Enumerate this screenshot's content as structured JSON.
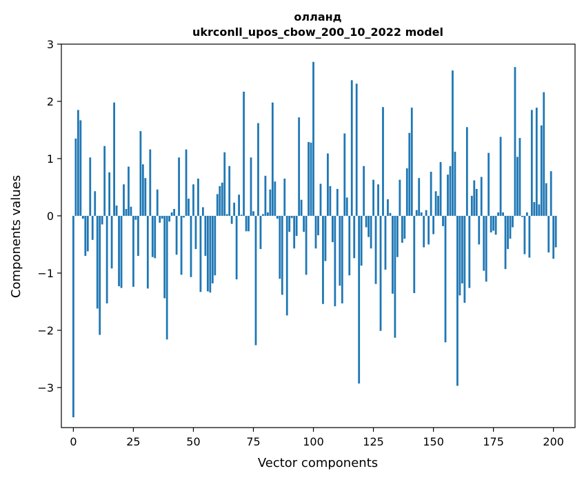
{
  "chart_data": {
    "type": "bar",
    "title": "олланд",
    "subtitle": "ukrconll_upos_cbow_200_10_2022 model",
    "xlabel": "Vector components",
    "ylabel": "Components values",
    "xlim": [
      -5,
      209
    ],
    "ylim": [
      -3.7,
      3.0
    ],
    "xticks": [
      0,
      25,
      50,
      75,
      100,
      125,
      150,
      175,
      200
    ],
    "yticks": [
      -3,
      -2,
      -1,
      0,
      1,
      2,
      3
    ],
    "ytick_labels": [
      "−3",
      "−2",
      "−1",
      "0",
      "1",
      "2",
      "3"
    ],
    "bar_color": "#1f77b4",
    "grid": false,
    "values": [
      -3.52,
      1.35,
      1.85,
      1.67,
      -0.05,
      -0.7,
      -0.62,
      1.02,
      -0.42,
      0.43,
      -1.62,
      -2.08,
      -0.15,
      1.22,
      -1.53,
      0.76,
      -0.92,
      1.98,
      0.18,
      -1.23,
      -1.26,
      0.55,
      0.12,
      0.86,
      0.16,
      -1.24,
      -0.07,
      -0.7,
      1.48,
      0.9,
      0.66,
      -1.27,
      1.16,
      -0.72,
      -0.74,
      0.46,
      -0.12,
      -0.05,
      -1.44,
      -2.16,
      -0.1,
      0.06,
      0.12,
      -0.68,
      1.02,
      -1.03,
      -0.03,
      1.16,
      0.3,
      -1.07,
      0.55,
      -0.58,
      0.65,
      -1.33,
      0.15,
      -0.7,
      -1.32,
      -1.34,
      -1.18,
      -1.04,
      0.38,
      0.52,
      0.58,
      1.11,
      0.03,
      0.87,
      -0.14,
      0.23,
      -1.11,
      0.37,
      0.02,
      2.17,
      -0.27,
      -0.27,
      1.02,
      0.08,
      -2.26,
      1.62,
      -0.58,
      0.03,
      0.7,
      0.06,
      0.46,
      1.98,
      0.6,
      -0.05,
      -1.1,
      -1.38,
      0.65,
      -1.74,
      -0.28,
      -0.04,
      -0.57,
      -0.35,
      1.72,
      0.28,
      -0.28,
      -1.03,
      1.29,
      1.28,
      2.69,
      -0.57,
      -0.34,
      0.56,
      -1.54,
      -0.79,
      1.09,
      0.52,
      -0.46,
      -1.58,
      0.47,
      -1.22,
      -1.53,
      1.44,
      0.32,
      -1.04,
      2.37,
      -0.74,
      2.31,
      -2.93,
      -0.87,
      0.87,
      -0.2,
      -0.37,
      -0.57,
      0.63,
      -1.19,
      0.55,
      -2.01,
      1.9,
      -0.94,
      0.29,
      0.05,
      -1.36,
      -2.13,
      -0.72,
      0.63,
      -0.47,
      -0.4,
      0.83,
      1.45,
      1.89,
      -1.35,
      0.1,
      0.66,
      0.06,
      -0.55,
      0.1,
      -0.5,
      0.77,
      -0.32,
      0.43,
      0.35,
      0.94,
      -0.18,
      -2.21,
      0.72,
      0.87,
      2.54,
      1.12,
      -2.97,
      -1.39,
      -1.18,
      -1.52,
      1.55,
      -1.26,
      0.35,
      0.62,
      0.47,
      -0.5,
      0.68,
      -0.96,
      -1.15,
      1.1,
      -0.29,
      -0.26,
      -0.33,
      0.06,
      1.38,
      0.06,
      -0.93,
      -0.58,
      -0.4,
      -0.2,
      2.6,
      1.03,
      1.36,
      -0.02,
      -0.67,
      0.06,
      -0.73,
      1.85,
      0.24,
      1.89,
      0.2,
      1.58,
      2.16,
      0.57,
      -0.64,
      0.78,
      -0.75,
      -0.55
    ]
  }
}
